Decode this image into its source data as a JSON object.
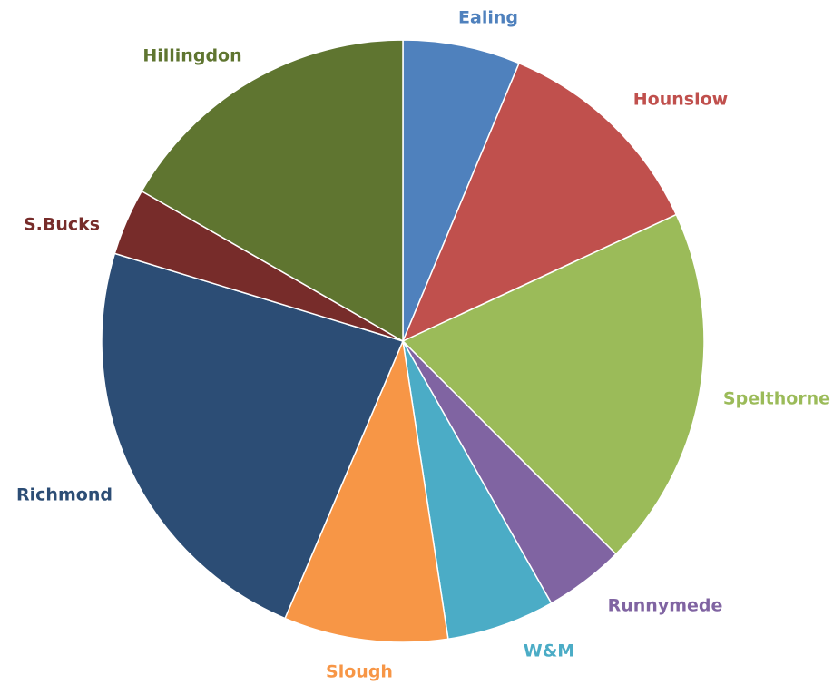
{
  "chart_data": {
    "type": "pie",
    "title": "",
    "start_angle_deg": 0,
    "direction": "clockwise",
    "legend": "none",
    "slices": [
      {
        "label": "Ealing",
        "value": 6.3,
        "color": "#4F81BD"
      },
      {
        "label": "Hounslow",
        "value": 11.8,
        "color": "#C0504D"
      },
      {
        "label": "Spelthorne",
        "value": 19.4,
        "color": "#9BBB59"
      },
      {
        "label": "Runnymede",
        "value": 4.3,
        "color": "#8064A2"
      },
      {
        "label": "W&M",
        "value": 5.8,
        "color": "#4BACC6"
      },
      {
        "label": "Slough",
        "value": 8.8,
        "color": "#F79646"
      },
      {
        "label": "Richmond",
        "value": 23.3,
        "color": "#2C4D75"
      },
      {
        "label": "S.Bucks",
        "value": 3.6,
        "color": "#772C2A"
      },
      {
        "label": "Hillingdon",
        "value": 16.7,
        "color": "#5F7530"
      }
    ]
  }
}
